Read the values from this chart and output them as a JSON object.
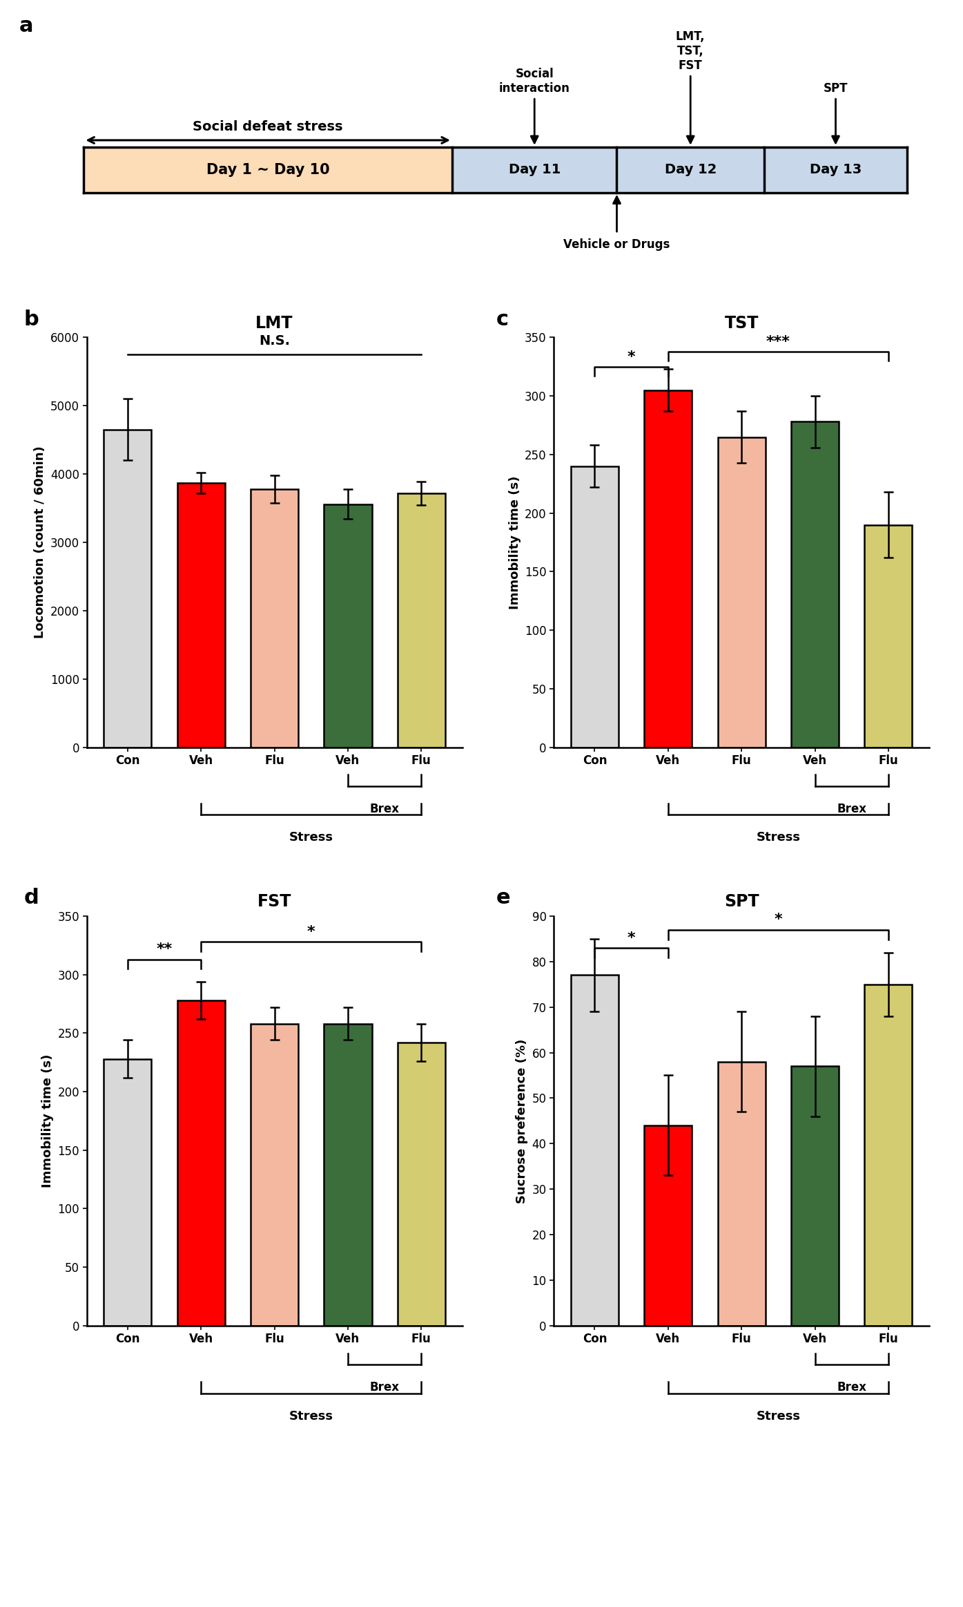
{
  "panel_a": {
    "day1_10_color": "#FDDCB8",
    "day11_13_color": "#C8D8EA",
    "stress_label": "Social defeat stress →",
    "timeline_labels": [
      "Day 1 ~ Day 10",
      "Day 11",
      "Day 12",
      "Day 13"
    ],
    "above_labels": [
      "Social\ninteraction",
      "LMT,\nTST,\nFST",
      "SPT"
    ],
    "below_label": "Vehicle or Drugs"
  },
  "panel_b": {
    "title": "LMT",
    "ylabel": "Locomotion (count / 60min)",
    "ylim": [
      0,
      6000
    ],
    "yticks": [
      0,
      1000,
      2000,
      3000,
      4000,
      5000,
      6000
    ],
    "categories": [
      "Con",
      "Veh",
      "Flu",
      "Veh",
      "Flu"
    ],
    "values": [
      4650,
      3870,
      3780,
      3560,
      3720
    ],
    "errors": [
      450,
      150,
      200,
      220,
      170
    ],
    "colors": [
      "#D8D8D8",
      "#FF0000",
      "#F4B8A0",
      "#3B6E3B",
      "#D4CC70"
    ],
    "ns_line": true
  },
  "panel_c": {
    "title": "TST",
    "ylabel": "Immobility time (s)",
    "ylim": [
      0,
      350
    ],
    "yticks": [
      0,
      50,
      100,
      150,
      200,
      250,
      300,
      350
    ],
    "categories": [
      "Con",
      "Veh",
      "Flu",
      "Veh",
      "Flu"
    ],
    "values": [
      240,
      305,
      265,
      278,
      190
    ],
    "errors": [
      18,
      18,
      22,
      22,
      28
    ],
    "colors": [
      "#D8D8D8",
      "#FF0000",
      "#F4B8A0",
      "#3B6E3B",
      "#D4CC70"
    ],
    "sig_pairs": [
      [
        "*",
        0,
        1,
        325
      ],
      [
        "***",
        1,
        4,
        338
      ]
    ]
  },
  "panel_d": {
    "title": "FST",
    "ylabel": "Immobility time (s)",
    "ylim": [
      0,
      350
    ],
    "yticks": [
      0,
      50,
      100,
      150,
      200,
      250,
      300,
      350
    ],
    "categories": [
      "Con",
      "Veh",
      "Flu",
      "Veh",
      "Flu"
    ],
    "values": [
      228,
      278,
      258,
      258,
      242
    ],
    "errors": [
      16,
      16,
      14,
      14,
      16
    ],
    "colors": [
      "#D8D8D8",
      "#FF0000",
      "#F4B8A0",
      "#3B6E3B",
      "#D4CC70"
    ],
    "sig_pairs": [
      [
        "**",
        0,
        1,
        313
      ],
      [
        "*",
        1,
        4,
        328
      ]
    ]
  },
  "panel_e": {
    "title": "SPT",
    "ylabel": "Sucrose preference (%)",
    "ylim": [
      0,
      90
    ],
    "yticks": [
      0,
      10,
      20,
      30,
      40,
      50,
      60,
      70,
      80,
      90
    ],
    "categories": [
      "Con",
      "Veh",
      "Flu",
      "Veh",
      "Flu"
    ],
    "values": [
      77,
      44,
      58,
      57,
      75
    ],
    "errors": [
      8,
      11,
      11,
      11,
      7
    ],
    "colors": [
      "#D8D8D8",
      "#FF0000",
      "#F4B8A0",
      "#3B6E3B",
      "#D4CC70"
    ],
    "sig_pairs": [
      [
        "*",
        0,
        1,
        83
      ],
      [
        "*",
        1,
        4,
        87
      ]
    ]
  },
  "bar_width": 0.65,
  "label_fontsize": 13,
  "title_fontsize": 17,
  "tick_fontsize": 12,
  "panel_label_fontsize": 22,
  "sig_fontsize": 16
}
